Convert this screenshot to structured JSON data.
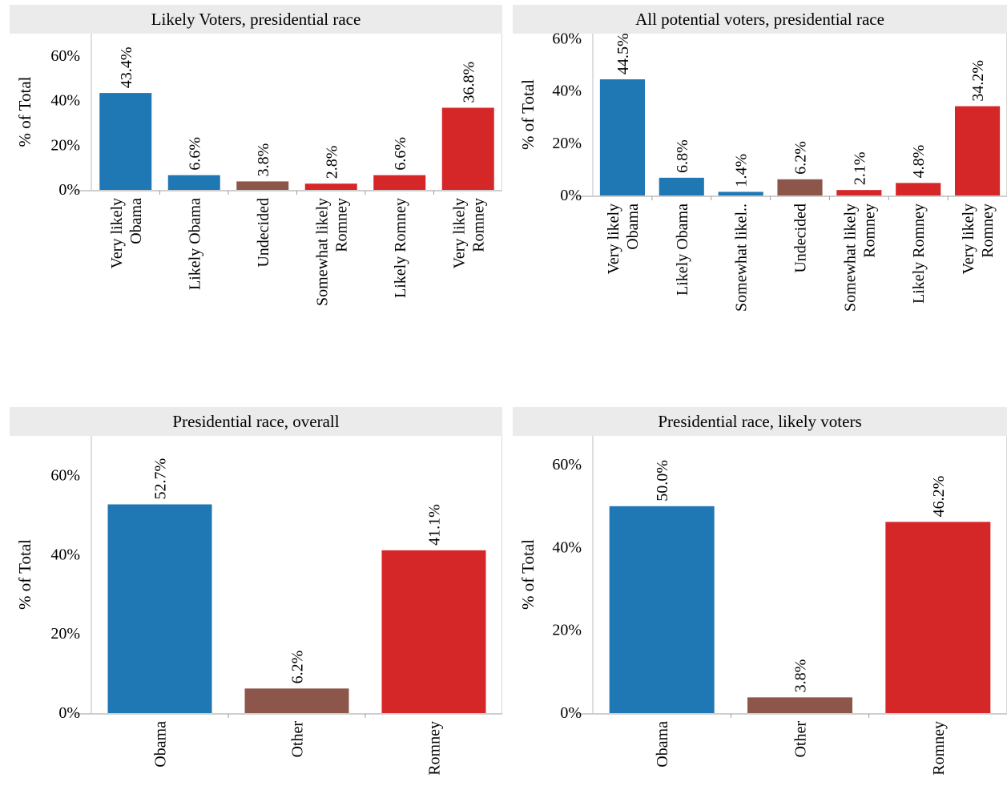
{
  "colors": {
    "obama": "#1f77b4",
    "undecided": "#8c564b",
    "romney": "#d62728"
  },
  "chart_data": [
    {
      "type": "bar",
      "title": "Likely Voters, presidential race",
      "ylabel": "% of Total",
      "ylim": [
        0,
        70
      ],
      "yticks": [
        0,
        20,
        40,
        60
      ],
      "yticklabels": [
        "0%",
        "20%",
        "40%",
        "60%"
      ],
      "categories": [
        "Very likely Obama",
        "Likely Obama",
        "Undecided",
        "Somewhat likely Romney",
        "Likely Romney",
        "Very likely Romney"
      ],
      "values": [
        43.4,
        6.6,
        3.8,
        2.8,
        6.6,
        36.8
      ],
      "labels": [
        "43.4%",
        "6.6%",
        "3.8%",
        "2.8%",
        "6.6%",
        "36.8%"
      ],
      "bar_colors": [
        "#1f77b4",
        "#1f77b4",
        "#8c564b",
        "#d62728",
        "#d62728",
        "#d62728"
      ],
      "grid": false
    },
    {
      "type": "bar",
      "title": "All potential voters, presidential race",
      "ylabel": "% of Total",
      "ylim": [
        0,
        62
      ],
      "yticks": [
        0,
        20,
        40,
        60
      ],
      "yticklabels": [
        "0%",
        "20%",
        "40%",
        "60%"
      ],
      "categories": [
        "Very likely Obama",
        "Likely Obama",
        "Somewhat likel..",
        "Undecided",
        "Somewhat likely Romney",
        "Likely Romney",
        "Very likely Romney"
      ],
      "values": [
        44.5,
        6.8,
        1.4,
        6.2,
        2.1,
        4.8,
        34.2
      ],
      "labels": [
        "44.5%",
        "6.8%",
        "1.4%",
        "6.2%",
        "2.1%",
        "4.8%",
        "34.2%"
      ],
      "bar_colors": [
        "#1f77b4",
        "#1f77b4",
        "#1f77b4",
        "#8c564b",
        "#d62728",
        "#d62728",
        "#d62728"
      ],
      "grid": false
    },
    {
      "type": "bar",
      "title": "Presidential race, overall",
      "ylabel": "% of Total",
      "ylim": [
        0,
        70
      ],
      "yticks": [
        0,
        20,
        40,
        60
      ],
      "yticklabels": [
        "0%",
        "20%",
        "40%",
        "60%"
      ],
      "categories": [
        "Obama",
        "Other",
        "Romney"
      ],
      "values": [
        52.7,
        6.2,
        41.1
      ],
      "labels": [
        "52.7%",
        "6.2%",
        "41.1%"
      ],
      "bar_colors": [
        "#1f77b4",
        "#8c564b",
        "#d62728"
      ],
      "grid": false
    },
    {
      "type": "bar",
      "title": "Presidential race, likely voters",
      "ylabel": "% of Total",
      "ylim": [
        0,
        67
      ],
      "yticks": [
        0,
        20,
        40,
        60
      ],
      "yticklabels": [
        "0%",
        "20%",
        "40%",
        "60%"
      ],
      "categories": [
        "Obama",
        "Other",
        "Romney"
      ],
      "values": [
        50.0,
        3.8,
        46.2
      ],
      "labels": [
        "50.0%",
        "3.8%",
        "46.2%"
      ],
      "bar_colors": [
        "#1f77b4",
        "#8c564b",
        "#d62728"
      ],
      "grid": false
    }
  ]
}
